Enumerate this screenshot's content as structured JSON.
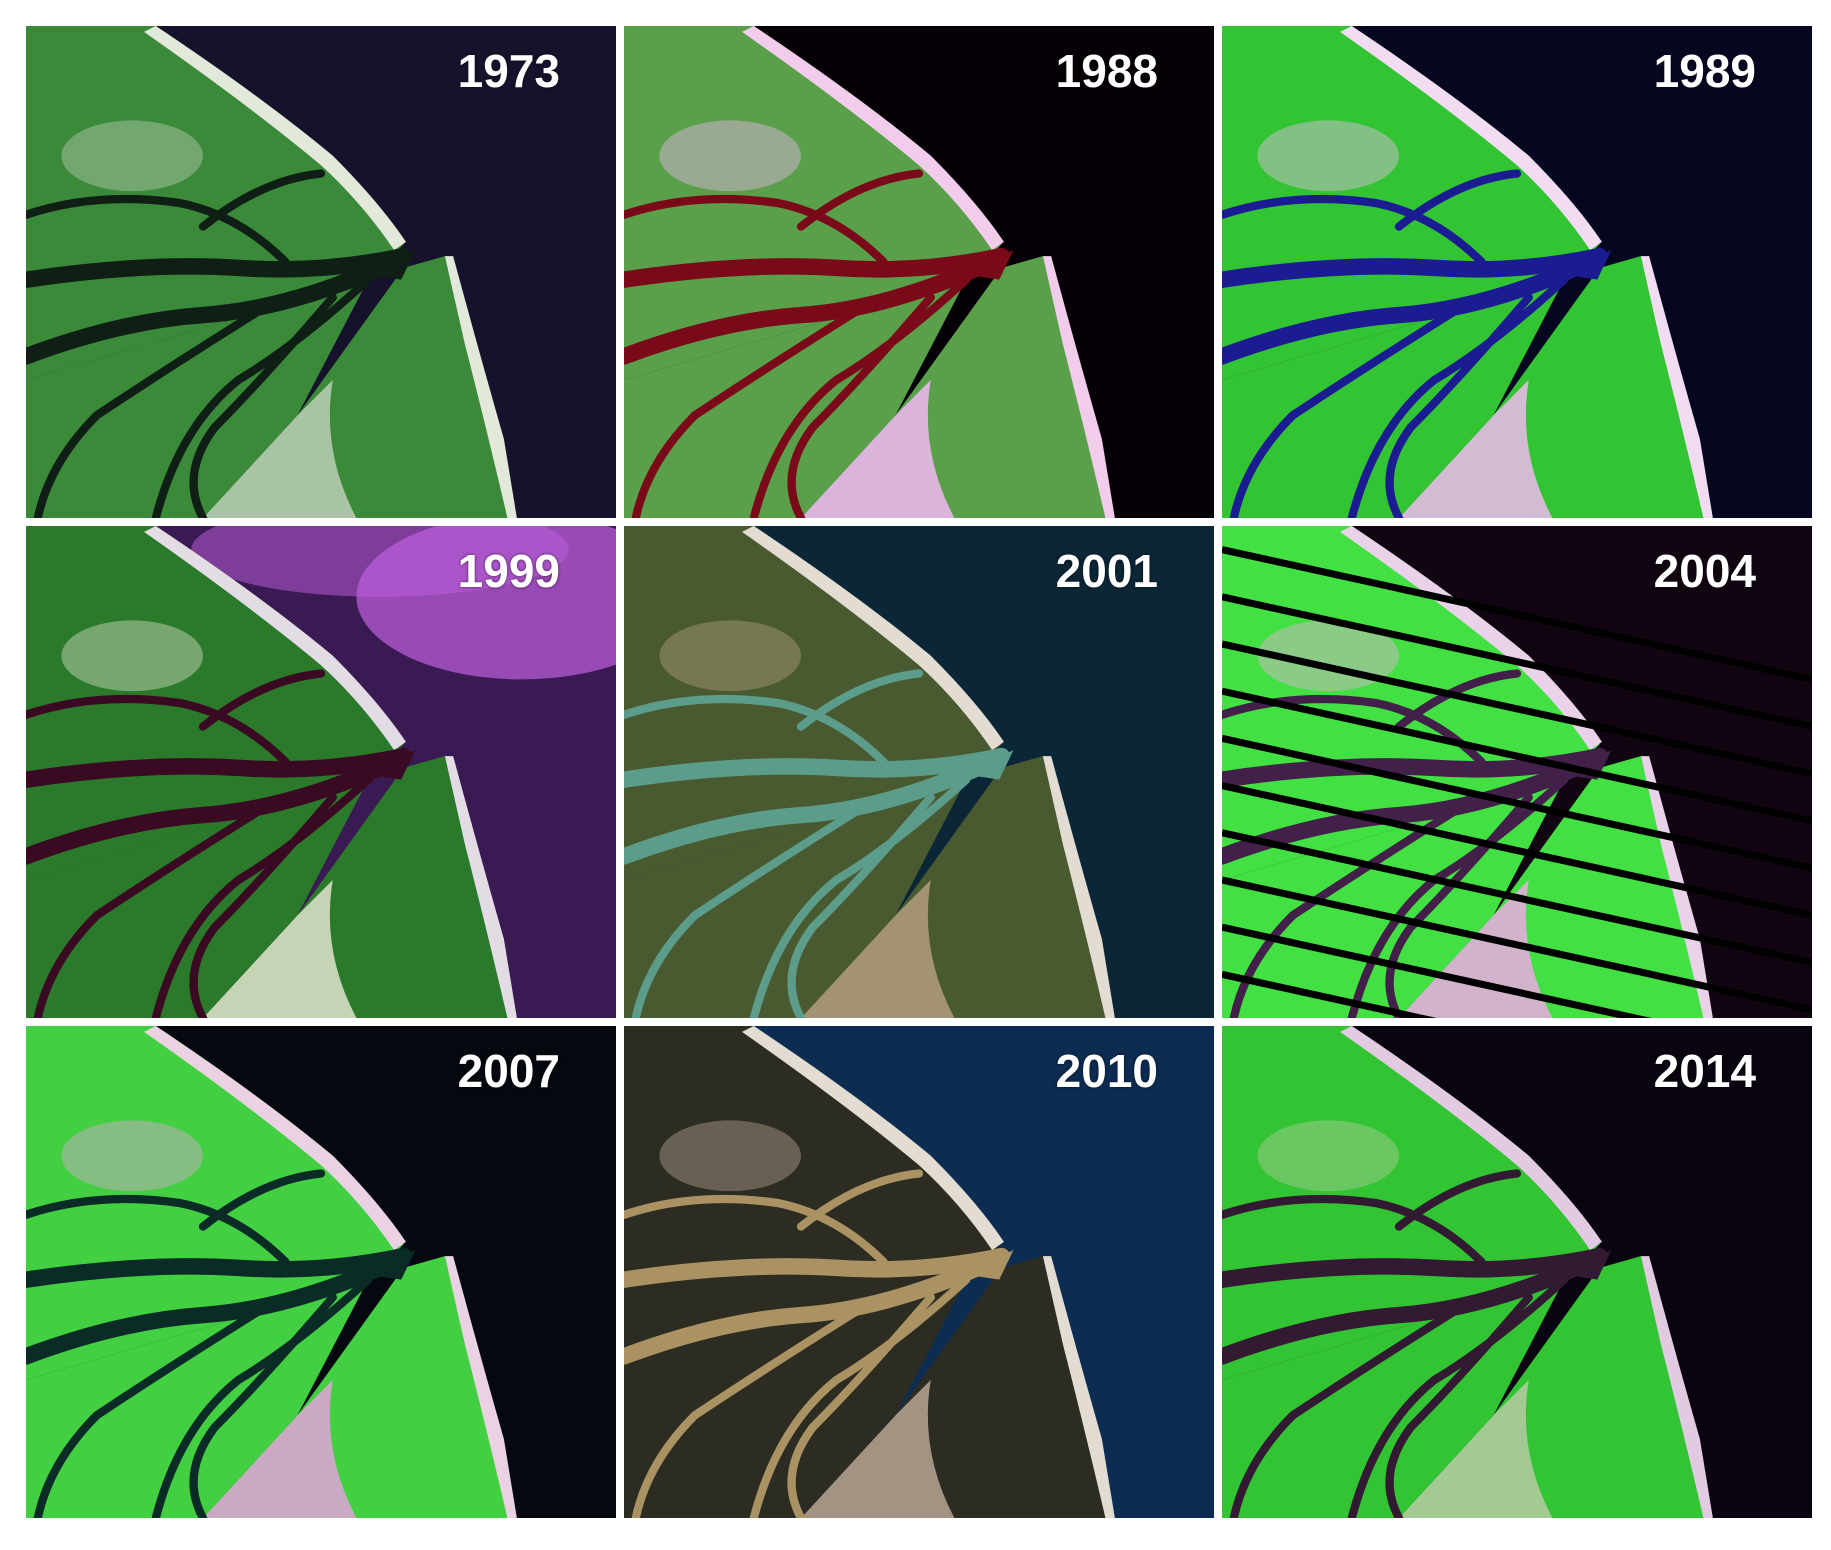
{
  "panels": [
    {
      "year": "1973"
    },
    {
      "year": "1988"
    },
    {
      "year": "1989"
    },
    {
      "year": "1999"
    },
    {
      "year": "2001"
    },
    {
      "year": "2004"
    },
    {
      "year": "2007"
    },
    {
      "year": "2010"
    },
    {
      "year": "2014"
    }
  ]
}
